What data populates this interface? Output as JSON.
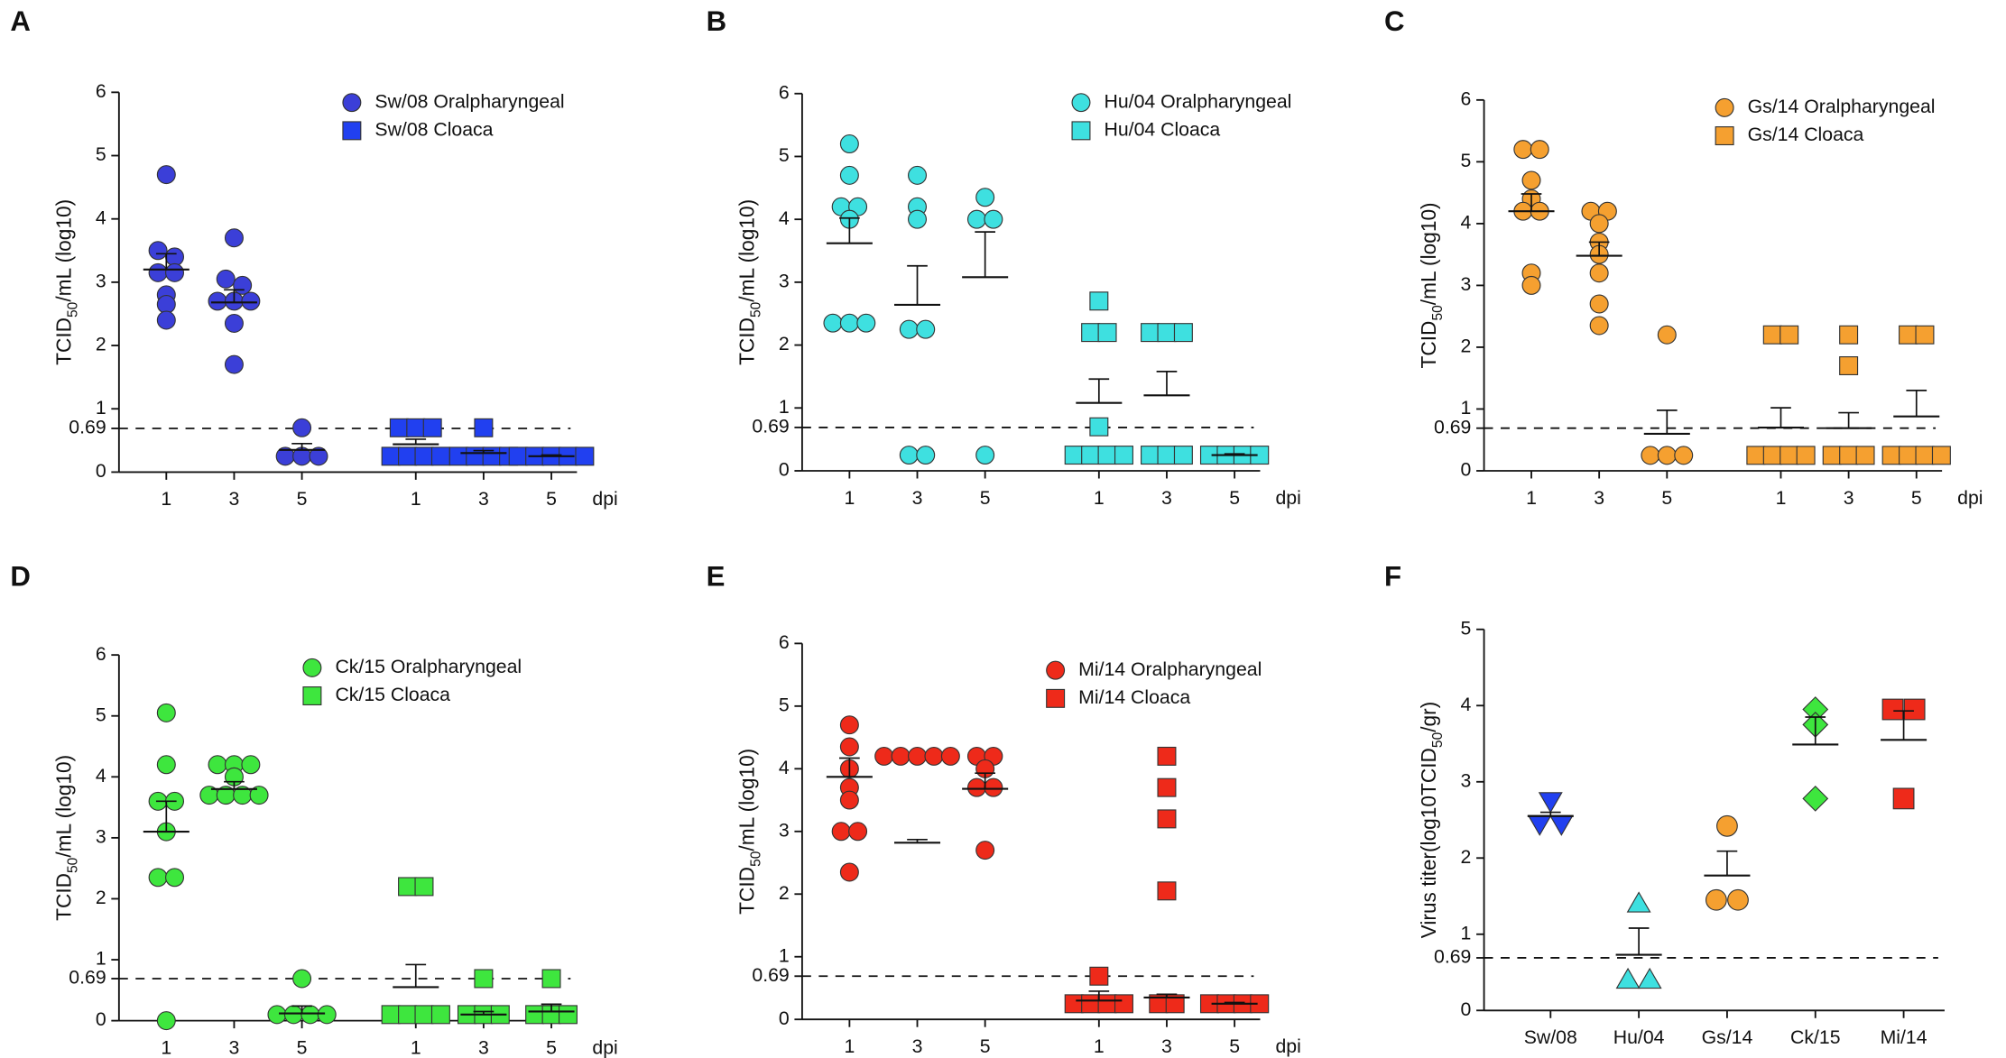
{
  "chart_data": [
    {
      "type": "dot",
      "panel": "A",
      "ylabel": [
        "TCID",
        "50",
        "/mL (log10)"
      ],
      "ylim": [
        0,
        6
      ],
      "yticks": [
        0,
        0.69,
        1,
        2,
        3,
        4,
        5,
        6
      ],
      "threshold": 0.69,
      "categories": [
        "1",
        "3",
        "5",
        "1",
        "3",
        "5"
      ],
      "xlabel": "dpi",
      "series": [
        {
          "name": "Sw/08 Oralpharyngeal",
          "color": "#3b3fd8",
          "marker": "circle",
          "groups": [
            [
              4.7,
              3.5,
              3.4,
              3.15,
              3.15,
              2.8,
              2.65,
              2.4
            ],
            [
              3.7,
              3.05,
              2.95,
              2.7,
              2.7,
              2.7,
              2.35,
              1.7
            ],
            [
              0.7,
              0.25,
              0.25,
              0.25
            ]
          ],
          "means": [
            3.2,
            2.68,
            0.35
          ],
          "errors": [
            0.25,
            0.2,
            0.1
          ]
        },
        {
          "name": "Sw/08 Cloaca",
          "color": "#2140f0",
          "marker": "square",
          "groups": [
            [
              0.7,
              0.7,
              0.7,
              0.25,
              0.25,
              0.25,
              0.25
            ],
            [
              0.7,
              0.25,
              0.25,
              0.25,
              0.25
            ],
            [
              0.25,
              0.25,
              0.25,
              0.25,
              0.25
            ]
          ],
          "means": [
            0.44,
            0.3,
            0.25
          ],
          "errors": [
            0.08,
            0.04,
            0.02
          ]
        }
      ]
    },
    {
      "type": "dot",
      "panel": "B",
      "ylabel": [
        "TCID",
        "50",
        "/mL (log10)"
      ],
      "ylim": [
        0,
        6
      ],
      "yticks": [
        0,
        0.69,
        1,
        2,
        3,
        4,
        5,
        6
      ],
      "threshold": 0.69,
      "categories": [
        "1",
        "3",
        "5",
        "1",
        "3",
        "5"
      ],
      "xlabel": "dpi",
      "series": [
        {
          "name": "Hu/04 Oralpharyngeal",
          "color": "#3ee0e0",
          "marker": "circle",
          "groups": [
            [
              5.2,
              4.7,
              4.2,
              4.2,
              4.0,
              2.35,
              2.35,
              2.35
            ],
            [
              4.7,
              4.2,
              4.0,
              2.25,
              2.25,
              0.25,
              0.25
            ],
            [
              4.35,
              4.0,
              4.0,
              0.25
            ]
          ],
          "means": [
            3.62,
            2.64,
            3.08
          ],
          "errors": [
            0.4,
            0.62,
            0.72
          ]
        },
        {
          "name": "Hu/04 Cloaca",
          "color": "#3ee0e0",
          "marker": "square",
          "groups": [
            [
              2.7,
              2.2,
              2.2,
              0.7,
              0.25,
              0.25,
              0.25,
              0.25
            ],
            [
              2.2,
              2.2,
              2.2,
              0.25,
              0.25,
              0.25
            ],
            [
              0.25,
              0.25,
              0.25,
              0.25
            ]
          ],
          "means": [
            1.08,
            1.2,
            0.25
          ],
          "errors": [
            0.38,
            0.38,
            0.02
          ]
        }
      ]
    },
    {
      "type": "dot",
      "panel": "C",
      "ylabel": [
        "TCID",
        "50",
        "/mL (log10)"
      ],
      "ylim": [
        0,
        6
      ],
      "yticks": [
        0,
        0.69,
        1,
        2,
        3,
        4,
        5,
        6
      ],
      "threshold": 0.69,
      "categories": [
        "1",
        "3",
        "5",
        "1",
        "3",
        "5"
      ],
      "xlabel": "dpi",
      "series": [
        {
          "name": "Gs/14 Oralpharyngeal",
          "color": "#f5a030",
          "marker": "circle",
          "groups": [
            [
              5.2,
              5.2,
              4.7,
              4.4,
              4.2,
              4.2,
              3.2,
              3.0
            ],
            [
              4.2,
              4.2,
              4.0,
              3.7,
              3.5,
              3.2,
              2.7,
              2.35
            ],
            [
              2.2,
              0.25,
              0.25,
              0.25
            ]
          ],
          "means": [
            4.2,
            3.48,
            0.6
          ],
          "errors": [
            0.28,
            0.22,
            0.38
          ]
        },
        {
          "name": "Gs/14 Cloaca",
          "color": "#f5a030",
          "marker": "square",
          "groups": [
            [
              2.2,
              2.2,
              0.25,
              0.25,
              0.25,
              0.25
            ],
            [
              2.2,
              1.7,
              0.25,
              0.25,
              0.25
            ],
            [
              2.2,
              2.2,
              0.25,
              0.25,
              0.25,
              0.25
            ]
          ],
          "means": [
            0.7,
            0.69,
            0.88
          ],
          "errors": [
            0.32,
            0.25,
            0.42
          ]
        }
      ]
    },
    {
      "type": "dot",
      "panel": "D",
      "ylabel": [
        "TCID",
        "50",
        "/mL (log10)"
      ],
      "ylim": [
        0,
        6
      ],
      "yticks": [
        0,
        0.69,
        1,
        2,
        3,
        4,
        5,
        6
      ],
      "threshold": 0.69,
      "categories": [
        "1",
        "3",
        "5",
        "1",
        "3",
        "5"
      ],
      "xlabel": "dpi",
      "series": [
        {
          "name": "Ck/15 Oralpharyngeal",
          "color": "#3ee63e",
          "marker": "circle",
          "groups": [
            [
              5.05,
              4.2,
              3.6,
              3.6,
              3.1,
              2.35,
              2.35,
              0
            ],
            [
              4.2,
              4.2,
              4.2,
              4.0,
              3.7,
              3.7,
              3.7,
              3.7
            ],
            [
              0.69,
              0.1,
              0.1,
              0.1,
              0.1
            ]
          ],
          "means": [
            3.1,
            3.8,
            0.12
          ],
          "errors": [
            0.5,
            0.12,
            0.12
          ]
        },
        {
          "name": "Ck/15 Cloaca",
          "color": "#3ee63e",
          "marker": "square",
          "groups": [
            [
              2.2,
              2.2,
              0.1,
              0.1,
              0.1,
              0.1
            ],
            [
              0.69,
              0.1,
              0.1,
              0.1
            ],
            [
              0.69,
              0.1,
              0.1,
              0.1
            ]
          ],
          "means": [
            0.55,
            0.1,
            0.15
          ],
          "errors": [
            0.37,
            0.05,
            0.12
          ]
        }
      ]
    },
    {
      "type": "dot",
      "panel": "E",
      "ylabel": [
        "TCID",
        "50",
        "/mL (log10)"
      ],
      "ylim": [
        0,
        6
      ],
      "yticks": [
        0,
        0.69,
        1,
        2,
        3,
        4,
        5,
        6
      ],
      "threshold": 0.69,
      "categories": [
        "1",
        "3",
        "5",
        "1",
        "3",
        "5"
      ],
      "xlabel": "dpi",
      "series": [
        {
          "name": "Mi/14 Oralpharyngeal",
          "color": "#ee2a1a",
          "marker": "circle",
          "groups": [
            [
              4.7,
              4.35,
              4.0,
              3.7,
              3.5,
              3.0,
              3.0,
              2.35
            ],
            [
              4.2,
              4.2,
              4.2,
              4.2,
              4.2
            ],
            [
              4.2,
              4.2,
              4.0,
              3.7,
              3.7,
              2.7
            ]
          ],
          "means": [
            3.87,
            2.82,
            3.68
          ],
          "errors": [
            0.3,
            0.05,
            0.25
          ]
        },
        {
          "name": "Mi/14 Cloaca",
          "color": "#ee2a1a",
          "marker": "square",
          "groups": [
            [
              0.69,
              0.25,
              0.25,
              0.25,
              0.25
            ],
            [
              4.2,
              3.7,
              3.2,
              2.05,
              0.25,
              0.25
            ],
            [
              0.25,
              0.25,
              0.25,
              0.25
            ]
          ],
          "means": [
            0.3,
            0.35,
            0.25
          ],
          "errors": [
            0.15,
            0.05,
            0.02
          ]
        }
      ]
    },
    {
      "type": "dot",
      "panel": "F",
      "ylabel": [
        "Virus titer(log10TCID",
        "50",
        "/gr)"
      ],
      "ylim": [
        0,
        5
      ],
      "yticks": [
        0,
        0.69,
        1,
        2,
        3,
        4,
        5
      ],
      "threshold": 0.69,
      "categories": [
        "Sw/08",
        "Hu/04",
        "Gs/14",
        "Ck/15",
        "Mi/14"
      ],
      "series": [
        {
          "color": "#2140f0",
          "marker": "triangle-down",
          "groups": [
            [
              2.75,
              2.45,
              2.45
            ]
          ],
          "means": [
            2.55
          ],
          "errors": [
            0.05
          ]
        },
        {
          "color": "#3ee0e0",
          "marker": "triangle-up",
          "groups": [
            [
              1.4,
              0.4,
              0.4
            ]
          ],
          "means": [
            0.73
          ],
          "errors": [
            0.35
          ]
        },
        {
          "color": "#f5a030",
          "marker": "circle",
          "groups": [
            [
              2.42,
              1.45,
              1.45
            ]
          ],
          "means": [
            1.77
          ],
          "errors": [
            0.32
          ]
        },
        {
          "color": "#3ee63e",
          "marker": "diamond",
          "groups": [
            [
              3.95,
              3.75,
              2.78
            ]
          ],
          "means": [
            3.49
          ],
          "errors": [
            0.36
          ]
        },
        {
          "color": "#ee2a1a",
          "marker": "square",
          "groups": [
            [
              3.95,
              3.95,
              2.78
            ]
          ],
          "means": [
            3.55
          ],
          "errors": [
            0.38
          ]
        }
      ]
    }
  ]
}
